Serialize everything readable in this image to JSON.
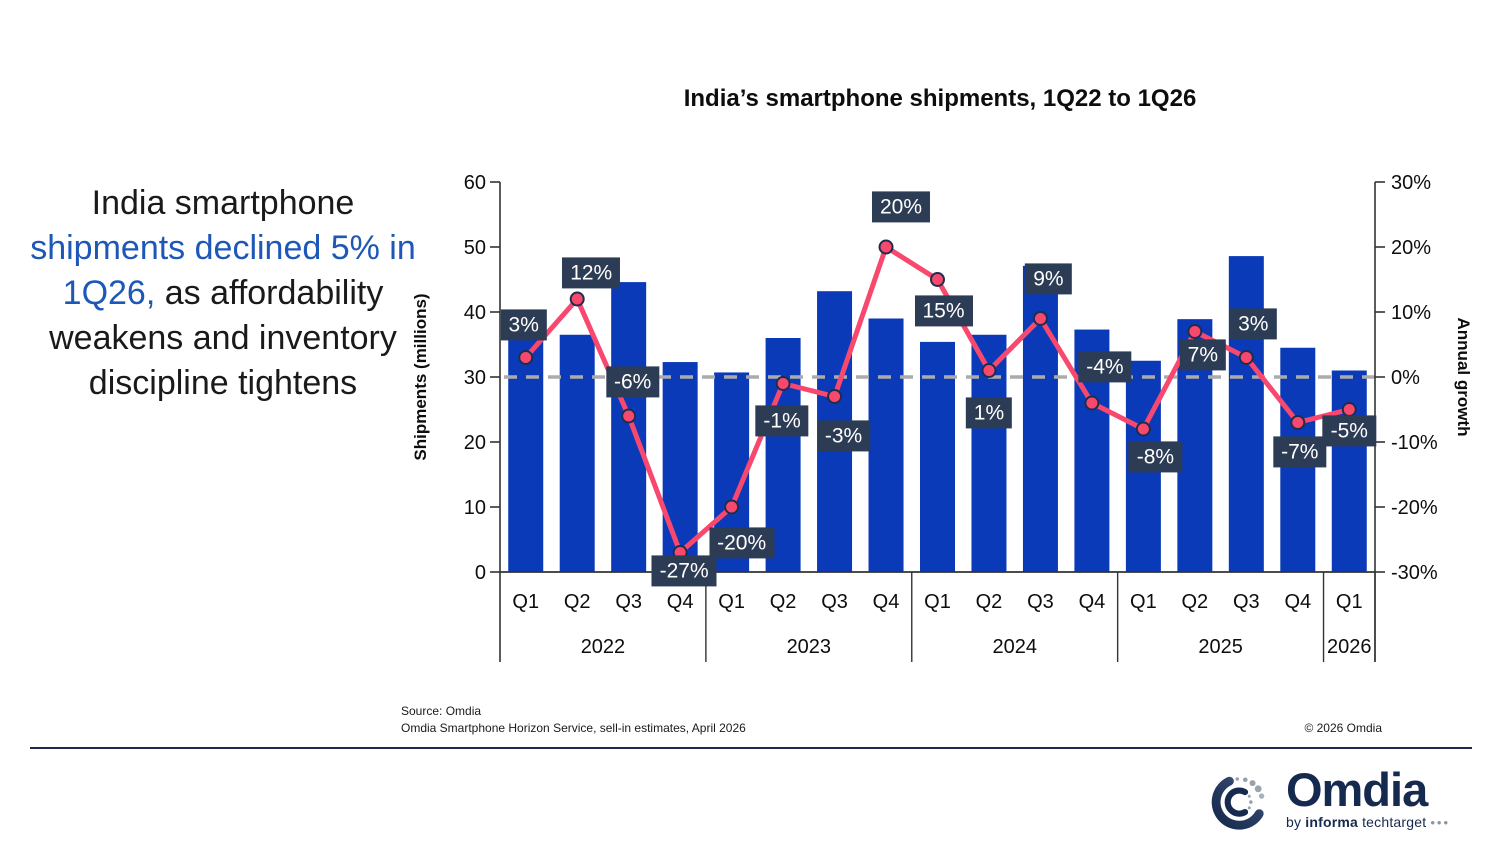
{
  "headline": {
    "part1": "India smartphone ",
    "highlight": "shipments declined 5% in 1Q26,",
    "part2": " as affordability weakens and inventory discipline tightens",
    "highlight_color": "#1d57b8"
  },
  "chart_data": {
    "type": "bar+line",
    "title": "India’s smartphone shipments, 1Q22 to 1Q26",
    "categories": [
      "Q1",
      "Q2",
      "Q3",
      "Q4",
      "Q1",
      "Q2",
      "Q3",
      "Q4",
      "Q1",
      "Q2",
      "Q3",
      "Q4",
      "Q1",
      "Q2",
      "Q3",
      "Q4",
      "Q1"
    ],
    "year_groups": [
      {
        "label": "2022",
        "count": 4
      },
      {
        "label": "2023",
        "count": 4
      },
      {
        "label": "2024",
        "count": 4
      },
      {
        "label": "2025",
        "count": 4
      },
      {
        "label": "2026",
        "count": 1
      }
    ],
    "series": [
      {
        "name": "Shipments (millions)",
        "type": "bar",
        "color": "#0a3ab8",
        "values": [
          36.2,
          36.5,
          44.6,
          32.3,
          30.7,
          36.0,
          43.2,
          39.0,
          35.4,
          36.5,
          47.1,
          37.3,
          32.5,
          38.9,
          48.6,
          34.5,
          31.0
        ]
      },
      {
        "name": "Annual growth",
        "type": "line",
        "color": "#f8486e",
        "marker_stroke": "#1f2d4d",
        "values": [
          3,
          12,
          -6,
          -27,
          -20,
          -1,
          -3,
          20,
          15,
          1,
          9,
          -4,
          -8,
          7,
          3,
          -7,
          -5
        ],
        "point_labels": [
          "3%",
          "12%",
          "-6%",
          "-27%",
          "-20%",
          "-1%",
          "-3%",
          "20%",
          "15%",
          "1%",
          "9%",
          "-4%",
          "-8%",
          "7%",
          "3%",
          "-7%",
          "-5%"
        ],
        "label_offsets": [
          [
            -2,
            -33
          ],
          [
            14,
            -26
          ],
          [
            4,
            -34
          ],
          [
            4,
            18
          ],
          [
            10,
            36
          ],
          [
            -1,
            37
          ],
          [
            9,
            39
          ],
          [
            15,
            -40
          ],
          [
            6,
            31
          ],
          [
            0,
            42
          ],
          [
            8,
            -40
          ],
          [
            13,
            -36
          ],
          [
            12,
            28
          ],
          [
            8,
            23
          ],
          [
            7,
            -34
          ],
          [
            2,
            29
          ],
          [
            0,
            21
          ]
        ]
      }
    ],
    "left_axis": {
      "label": "Shipments (millions)",
      "min": 0,
      "max": 60,
      "ticks": [
        "60",
        "50",
        "40",
        "30",
        "20",
        "10",
        "0"
      ]
    },
    "right_axis": {
      "label": "Annual growth",
      "min": -30,
      "max": 30,
      "ticks": [
        "30%",
        "20%",
        "10%",
        "0%",
        "-10%",
        "-20%",
        "-30%"
      ]
    },
    "zero_line": {
      "value": 0,
      "style": "dashed",
      "color": "#ababab"
    },
    "label_box_color": "#2d3c55",
    "label_text_color": "#ffffff",
    "axis_color": "#333333",
    "grid": false,
    "legend": "none"
  },
  "footer": {
    "source_line1": "Source: Omdia",
    "source_line2": "Omdia Smartphone Horizon Service, sell-in estimates, April 2026",
    "copyright": "© 2026 Omdia"
  },
  "logo": {
    "name": "Omdia",
    "tagline_by": "by",
    "tagline_informa": "informa",
    "tagline_tech": "techtarget",
    "tagline_dots": "•••",
    "color": "#16294e"
  }
}
